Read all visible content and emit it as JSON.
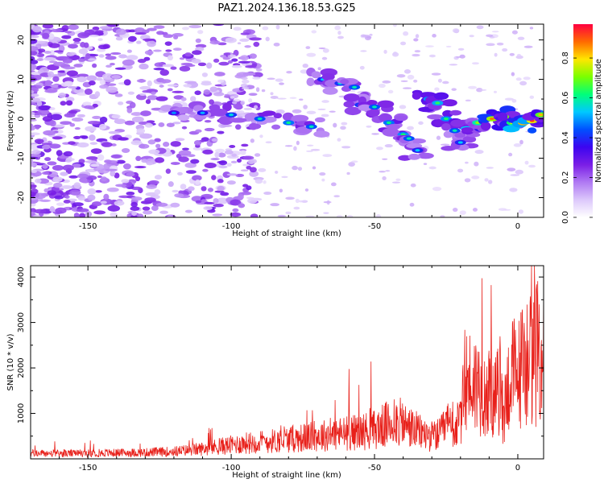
{
  "title": "PAZ1.2024.136.18.53.G25",
  "colors": {
    "snr_line": "#e8201a",
    "colormap": [
      "#ffffff",
      "#dcc8fb",
      "#b079f3",
      "#7a1ee6",
      "#3c05f0",
      "#0050ff",
      "#00c8ff",
      "#00ff7a",
      "#7aff00",
      "#ffe600",
      "#ff6a00",
      "#ff0040"
    ]
  },
  "chart_data": [
    {
      "type": "heatmap",
      "xlabel": "Height of straight line (km)",
      "ylabel": "Frequency (Hz)",
      "xlim": [
        -170,
        9
      ],
      "ylim": [
        -25,
        24
      ],
      "xticks": [
        -150,
        -100,
        -50,
        0
      ],
      "xtick_labels": [
        "-150",
        "-100",
        "-50",
        "0"
      ],
      "yticks": [
        -20,
        -10,
        0,
        10,
        20
      ],
      "ytick_labels": [
        "-20",
        "-10",
        "0",
        "10",
        "20"
      ],
      "colorbar": {
        "label": "Normalized spectral amplitude",
        "range": [
          0,
          0.97
        ],
        "ticks": [
          0.0,
          0.2,
          0.4,
          0.6,
          0.8
        ],
        "tick_labels": [
          "0.0",
          "0.2",
          "0.4",
          "0.6",
          "0.8"
        ]
      },
      "ridge": [
        {
          "x": -120,
          "y": 1.5,
          "amp": 0.35
        },
        {
          "x": -110,
          "y": 1.5,
          "amp": 0.38
        },
        {
          "x": -100,
          "y": 1,
          "amp": 0.42
        },
        {
          "x": -90,
          "y": 0,
          "amp": 0.45
        },
        {
          "x": -80,
          "y": -1,
          "amp": 0.48
        },
        {
          "x": -72,
          "y": -2,
          "amp": 0.45
        },
        {
          "x": -68,
          "y": 10,
          "amp": 0.4
        },
        {
          "x": -62,
          "y": 9,
          "amp": 0.42
        },
        {
          "x": -57,
          "y": 8,
          "amp": 0.45
        },
        {
          "x": -55,
          "y": 3.5,
          "amp": 0.42
        },
        {
          "x": -50,
          "y": 3,
          "amp": 0.45
        },
        {
          "x": -45,
          "y": -1,
          "amp": 0.48
        },
        {
          "x": -40,
          "y": -4,
          "amp": 0.5
        },
        {
          "x": -38,
          "y": -5,
          "amp": 0.45
        },
        {
          "x": -35,
          "y": -8,
          "amp": 0.4
        },
        {
          "x": -31,
          "y": 5,
          "amp": 0.5
        },
        {
          "x": -28,
          "y": 4,
          "amp": 0.52
        },
        {
          "x": -25,
          "y": 0,
          "amp": 0.5
        },
        {
          "x": -22,
          "y": -3,
          "amp": 0.45
        },
        {
          "x": -20,
          "y": -6,
          "amp": 0.4
        },
        {
          "x": -18,
          "y": -2.5,
          "amp": 0.55
        },
        {
          "x": -14,
          "y": -1,
          "amp": 0.6
        },
        {
          "x": -9,
          "y": 0,
          "amp": 0.75
        },
        {
          "x": -5,
          "y": 0.5,
          "amp": 0.72
        },
        {
          "x": -2,
          "y": -1,
          "amp": 0.65
        },
        {
          "x": 2,
          "y": -1,
          "amp": 0.85
        },
        {
          "x": 5,
          "y": -0.5,
          "amp": 0.8
        },
        {
          "x": 8,
          "y": 1,
          "amp": 0.7
        }
      ]
    },
    {
      "type": "line",
      "xlabel": "Height of straight line (km)",
      "ylabel": "SNR (10 * v/v)",
      "xlim": [
        -170,
        9
      ],
      "ylim": [
        0,
        4250
      ],
      "xticks": [
        -150,
        -100,
        -50,
        0
      ],
      "xtick_labels": [
        "-150",
        "-100",
        "-50",
        "0"
      ],
      "yticks": [
        1000,
        2000,
        3000,
        4000
      ],
      "ytick_labels": [
        "1000",
        "2000",
        "3000",
        "4000"
      ],
      "series": [
        {
          "x": [
            -170,
            -160,
            -150,
            -140,
            -130,
            -120,
            -115,
            -110,
            -105,
            -100,
            -95,
            -90,
            -85,
            -80,
            -75,
            -70,
            -65,
            -60,
            -55,
            -50,
            -46,
            -42,
            -38,
            -34,
            -30,
            -27,
            -25,
            -22,
            -20,
            -18,
            -15,
            -12,
            -10,
            -8,
            -6,
            -5,
            -4,
            -2,
            0,
            2,
            4,
            6,
            8,
            9
          ],
          "y": [
            150,
            140,
            150,
            160,
            170,
            200,
            230,
            270,
            320,
            370,
            420,
            450,
            480,
            520,
            560,
            600,
            650,
            680,
            720,
            780,
            900,
            1000,
            850,
            700,
            600,
            650,
            900,
            800,
            1000,
            2100,
            2000,
            1900,
            1700,
            1600,
            2000,
            1000,
            1800,
            2300,
            2200,
            2600,
            2700,
            2800,
            2850,
            2900
          ]
        }
      ]
    }
  ]
}
